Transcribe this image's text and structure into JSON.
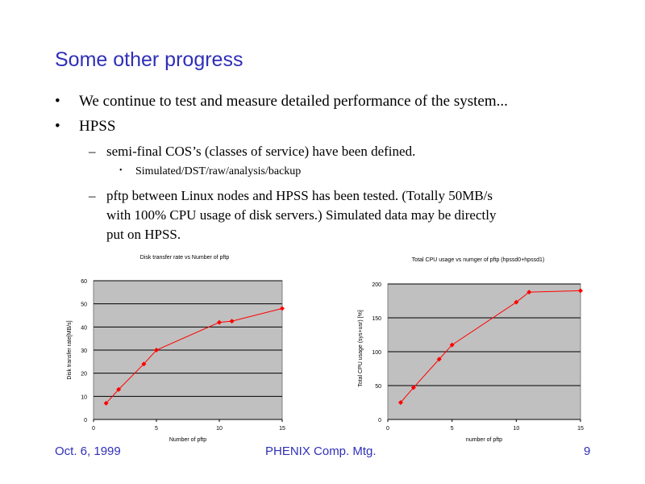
{
  "slide": {
    "title": "Some other progress",
    "bullets": [
      "We continue to test and measure detailed performance of the system...",
      "HPSS"
    ],
    "sub_bullets": [
      "semi-final COS’s (classes of service) have been defined.",
      "pftp between Linux nodes and HPSS has been tested. (Totally 50MB/s",
      "with 100% CPU usage of disk servers.)  Simulated data may be directly",
      "put on HPSS."
    ],
    "sub_sub_bullets": [
      "Simulated/DST/raw/analysis/backup"
    ],
    "bullet_glyph": "•",
    "dash_glyph": "–",
    "footer": {
      "date": "Oct. 6, 1999",
      "meeting": "PHENIX Comp. Mtg.",
      "page": "9"
    }
  },
  "colors": {
    "title": "#2f2fb8",
    "plot_bg": "#c0c0c0",
    "series": "#ff0000"
  },
  "chart_data": [
    {
      "type": "line",
      "title": "Disk transfer rate vs Number of pftp",
      "xlabel": "Number of pftp",
      "ylabel": "Disk transfer rate[MB/s]",
      "xlim": [
        0,
        15
      ],
      "ylim": [
        0,
        60
      ],
      "xticks": [
        0,
        5,
        10,
        15
      ],
      "yticks": [
        0,
        10,
        20,
        30,
        40,
        50,
        60
      ],
      "grid": true,
      "series": [
        {
          "x": [
            1,
            2,
            4,
            5,
            10,
            11,
            15
          ],
          "y": [
            7,
            13,
            24,
            30,
            42,
            42.5,
            48
          ]
        }
      ]
    },
    {
      "type": "line",
      "title": "Total CPU usage vs numger of pftp (hpssd0+hpssd1)",
      "xlabel": "number of pftp",
      "ylabel": "Total CPU usage (sys+usr) [%]",
      "xlim": [
        0,
        15
      ],
      "ylim": [
        0,
        200
      ],
      "xticks": [
        0,
        5,
        10,
        15
      ],
      "yticks": [
        0,
        50,
        100,
        150,
        200
      ],
      "grid": true,
      "series": [
        {
          "x": [
            1,
            2,
            4,
            5,
            10,
            11,
            15
          ],
          "y": [
            25,
            47,
            89,
            110,
            173,
            188,
            190
          ]
        }
      ]
    }
  ]
}
